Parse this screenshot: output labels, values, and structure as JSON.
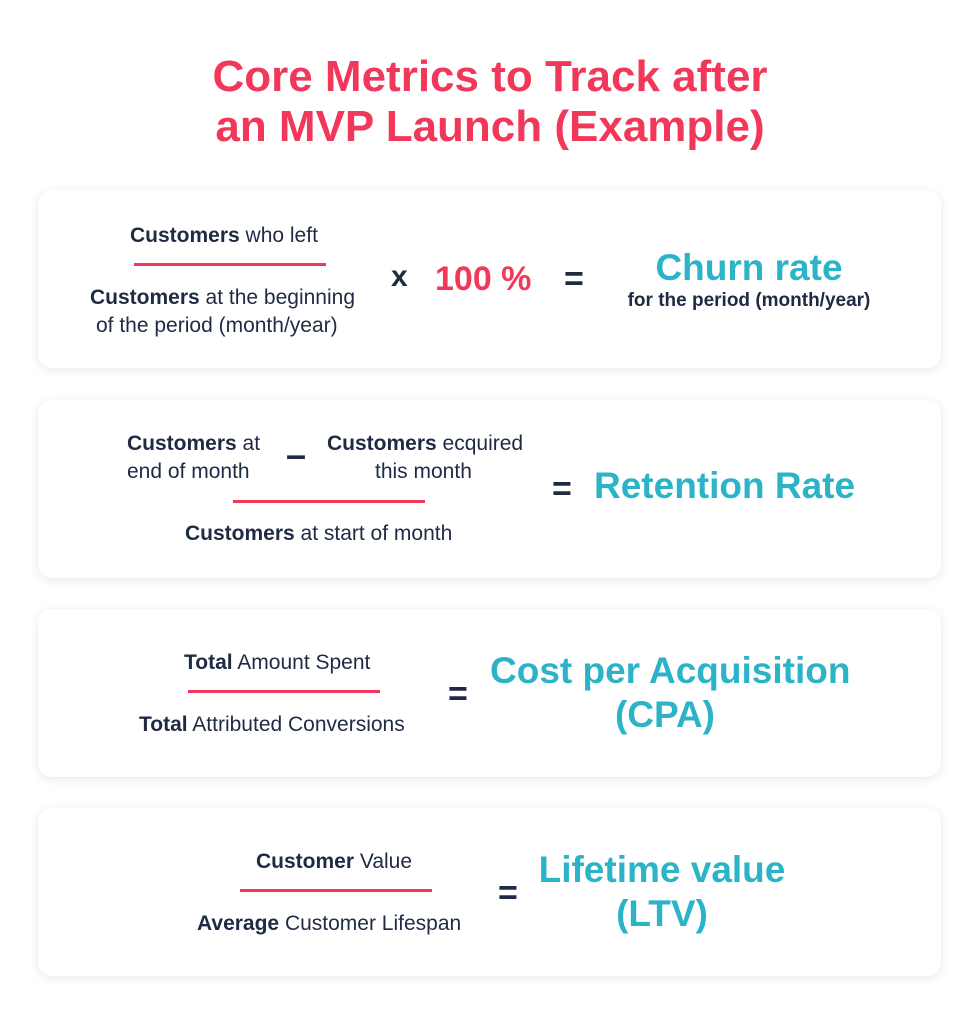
{
  "title": [
    "Core Metrics to Track after",
    "an MVP Launch (Example)"
  ],
  "colors": {
    "accent_red": "#f2385a",
    "accent_teal": "#2bb3c7",
    "text_navy": "#1f2a44"
  },
  "cards": [
    {
      "numerator": {
        "bold": "Customers",
        "rest": " who left"
      },
      "denominator": [
        {
          "bold": "Customers",
          "rest": " at the beginning"
        },
        {
          "bold": "",
          "rest": "of the period (month/year)"
        }
      ],
      "multiply": "x",
      "factor": "100 %",
      "equals": "=",
      "result": "Churn rate",
      "result_sub": "for the period (month/year)"
    },
    {
      "term1": [
        {
          "bold": "Customers",
          "rest": " at"
        },
        {
          "bold": "",
          "rest": "end of month"
        }
      ],
      "minus": "–",
      "term2": [
        {
          "bold": "Customers",
          "rest": " ecquired"
        },
        {
          "bold": "",
          "rest": "this month"
        }
      ],
      "denominator": {
        "bold": "Customers",
        "rest": " at start of month"
      },
      "equals": "=",
      "result": "Retention Rate"
    },
    {
      "numerator": {
        "bold": "Total",
        "rest": " Amount Spent"
      },
      "denominator": {
        "bold": "Total",
        "rest": " Attributed Conversions"
      },
      "equals": "=",
      "result": [
        "Cost per Acquisition",
        "(CPA)"
      ]
    },
    {
      "numerator": {
        "bold": "Customer",
        "rest": " Value"
      },
      "denominator": {
        "bold": "Average",
        "rest": " Customer Lifespan"
      },
      "equals": "=",
      "result": [
        "Lifetime value",
        "(LTV)"
      ]
    }
  ]
}
